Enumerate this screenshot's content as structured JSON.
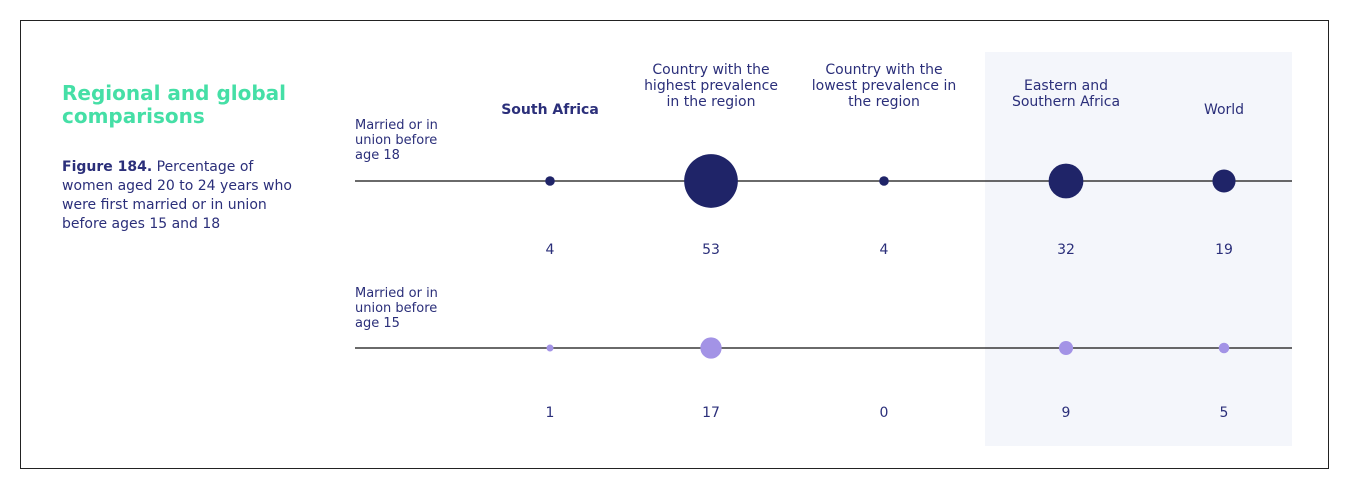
{
  "heading": "Regional and global comparisons",
  "figure_label": "Figure 184.",
  "figure_caption": "Percentage of women aged 20 to 24 years who were first married or in union before ages 15 and 18",
  "chart_data": {
    "type": "bubble",
    "categories": [
      "South Africa",
      "Country with the highest prevalence in the region",
      "Country with the lowest prevalence in the region",
      "Eastern and Southern Africa",
      "World"
    ],
    "series": [
      {
        "name": "Married or in union before age 18",
        "color": "#1f2468",
        "values": [
          4,
          53,
          4,
          32,
          19
        ]
      },
      {
        "name": "Married or in union before age 15",
        "color": "#a393e6",
        "values": [
          1,
          17,
          0,
          9,
          5
        ]
      }
    ]
  }
}
